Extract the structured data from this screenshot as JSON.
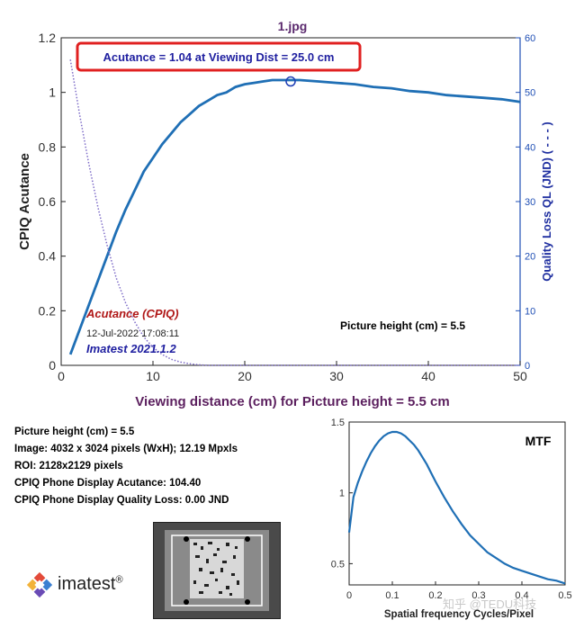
{
  "title": "1.jpg",
  "callout": "Acutance = 1.04 at Viewing Dist = 25.0 cm",
  "main_chart": {
    "type": "line",
    "xlabel": "Viewing distance (cm) for Picture height = 5.5 cm",
    "ylabel_left": "CPIQ Acutance",
    "ylabel_right": "Quality Loss QL (JND) ( - - - )",
    "xlim": [
      0,
      50
    ],
    "ylim_left": [
      0,
      1.2
    ],
    "ylim_right": [
      0,
      60
    ],
    "xticks": [
      "0",
      "10",
      "20",
      "30",
      "40",
      "50"
    ],
    "yticks_left": [
      "0",
      "0.2",
      "0.4",
      "0.6",
      "0.8",
      "1",
      "1.2"
    ],
    "yticks_right": [
      "0",
      "10",
      "20",
      "30",
      "40",
      "50",
      "60"
    ],
    "series": [
      {
        "name": "Acutance (CPIQ)",
        "axis": "left",
        "style": "solid",
        "color": "#1f6fb5",
        "x": [
          1,
          2,
          3,
          4,
          5,
          6,
          7,
          8,
          9,
          10,
          11,
          12,
          13,
          14,
          15,
          16,
          17,
          18,
          19,
          20,
          21,
          22,
          23,
          24,
          25,
          26,
          28,
          30,
          32,
          34,
          36,
          38,
          40,
          42,
          44,
          46,
          48,
          50
        ],
        "y": [
          0.04,
          0.13,
          0.22,
          0.31,
          0.4,
          0.49,
          0.57,
          0.64,
          0.71,
          0.76,
          0.81,
          0.85,
          0.89,
          0.92,
          0.95,
          0.97,
          0.99,
          1.0,
          1.02,
          1.03,
          1.035,
          1.04,
          1.045,
          1.045,
          1.045,
          1.045,
          1.04,
          1.035,
          1.03,
          1.02,
          1.015,
          1.005,
          1.0,
          0.99,
          0.985,
          0.98,
          0.975,
          0.965
        ]
      },
      {
        "name": "Quality Loss QL",
        "axis": "right",
        "style": "dotted",
        "color": "#7d6bc7",
        "x": [
          1,
          2,
          3,
          4,
          5,
          6,
          7,
          8,
          9,
          10,
          11,
          12,
          13,
          14,
          15,
          16,
          18,
          20,
          25,
          30,
          40,
          50
        ],
        "y": [
          56,
          46,
          37,
          29,
          22,
          16,
          11.5,
          8,
          5.2,
          3.3,
          2,
          1.1,
          0.6,
          0.3,
          0.1,
          0,
          0,
          0,
          0,
          0,
          0,
          0
        ]
      }
    ],
    "marker": {
      "x": 25,
      "y": 1.04
    },
    "labels": {
      "acutance_name": "Acutance (CPIQ)",
      "timestamp": "12-Jul-2022 17:08:11",
      "version": "Imatest 2021.1.2",
      "picture_height": "Picture height (cm) = 5.5"
    }
  },
  "info_lines": [
    "Picture height (cm) = 5.5",
    "Image: 4032 x 3024 pixels (WxH); 12.19 Mpxls",
    "ROI: 2128x2129 pixels",
    "CPIQ Phone Display Acutance: 104.40",
    "CPIQ Phone Display Quality Loss: 0.00 JND"
  ],
  "mtf_chart": {
    "type": "line",
    "title": "MTF",
    "xlabel": "Spatial frequency Cycles/Pixel",
    "xlim": [
      0,
      0.5
    ],
    "ylim": [
      0.35,
      1.5
    ],
    "xticks": [
      "0",
      "0.1",
      "0.2",
      "0.3",
      "0.4",
      "0.5"
    ],
    "yticks": [
      "0.5",
      "1",
      "1.5"
    ],
    "series": [
      {
        "name": "MTF",
        "color": "#1f6fb5",
        "x": [
          0,
          0.01,
          0.02,
          0.03,
          0.04,
          0.05,
          0.06,
          0.07,
          0.08,
          0.09,
          0.1,
          0.11,
          0.12,
          0.13,
          0.14,
          0.15,
          0.16,
          0.17,
          0.18,
          0.19,
          0.2,
          0.22,
          0.24,
          0.26,
          0.28,
          0.3,
          0.32,
          0.34,
          0.36,
          0.38,
          0.4,
          0.42,
          0.44,
          0.46,
          0.48,
          0.5
        ],
        "y": [
          0.72,
          0.97,
          1.07,
          1.15,
          1.22,
          1.28,
          1.33,
          1.37,
          1.4,
          1.42,
          1.43,
          1.43,
          1.42,
          1.4,
          1.37,
          1.34,
          1.3,
          1.25,
          1.2,
          1.14,
          1.08,
          0.97,
          0.87,
          0.78,
          0.7,
          0.64,
          0.58,
          0.54,
          0.5,
          0.47,
          0.45,
          0.43,
          0.41,
          0.39,
          0.38,
          0.36
        ]
      }
    ]
  },
  "logo": {
    "text": "imatest",
    "mark": "®"
  },
  "watermark": "知乎 @TEDU科技"
}
